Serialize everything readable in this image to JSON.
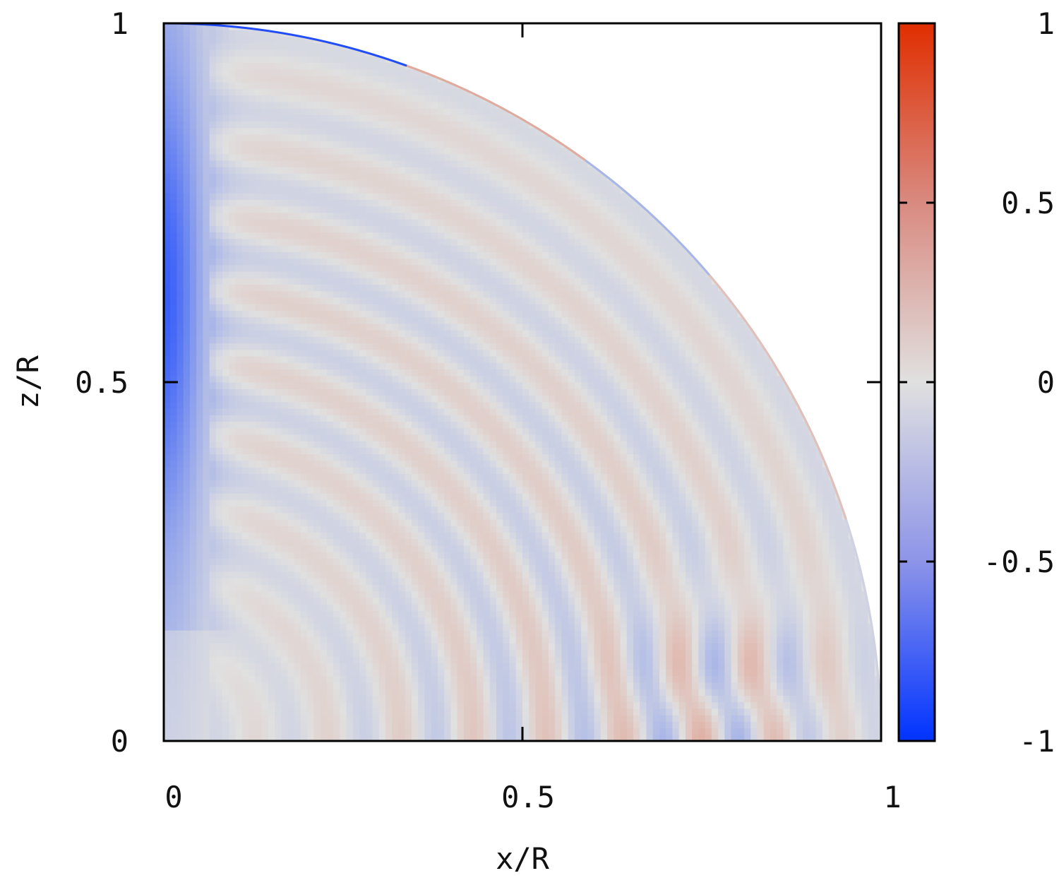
{
  "chart_data": {
    "type": "heatmap",
    "title": "",
    "xlabel": "x/R",
    "ylabel": "z/R",
    "xlim": [
      0,
      1
    ],
    "ylim": [
      0,
      1
    ],
    "x_ticks": [
      "0",
      "0.5",
      "1"
    ],
    "y_ticks": [
      "0",
      "0.5",
      "1"
    ],
    "x_tick_values": [
      0,
      0.5,
      1
    ],
    "y_tick_values": [
      0,
      0.5,
      1
    ],
    "domain": "quarter disk, r = sqrt(x^2 + z^2) <= 1",
    "colorbar": {
      "range": [
        -1,
        1
      ],
      "ticks": [
        "1",
        "0.5",
        "0",
        "-0.5",
        "-1"
      ],
      "tick_values": [
        1,
        0.5,
        0,
        -0.5,
        -1
      ],
      "colors": {
        "min": "#0033ff",
        "mid": "#e0e0e0",
        "max": "#e02e00"
      }
    },
    "features": [
      {
        "region": "polar axis x≈0, z 0.4–0.85",
        "value": -0.55
      },
      {
        "region": "outer boundary arc near pole",
        "value": -0.8
      },
      {
        "region": "arc boundary mid-latitudes",
        "value": 0.2
      },
      {
        "region": "concentric weak bands across interior",
        "value_range": [
          -0.15,
          0.15
        ]
      },
      {
        "region": "equatorial patch x≈0.7–0.9, z≈0–0.2",
        "value_range": [
          -0.25,
          0.25
        ]
      }
    ],
    "grid": false,
    "legend": "colorbar-right"
  }
}
